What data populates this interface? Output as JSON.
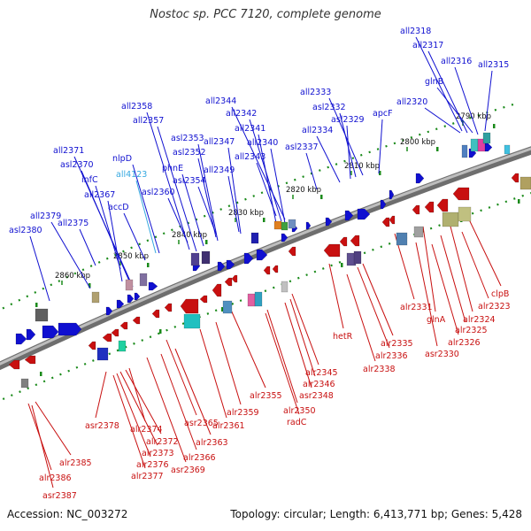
{
  "title": "Nostoc sp. PCC 7120, complete genome",
  "footer": {
    "accession": "Accession: NC_003272",
    "summary": "Topology: circular; Length: 6,413,771 bp; Genes: 5,428"
  },
  "colors": {
    "plus_strand": "#1010d0",
    "minus_strand": "#c81010",
    "highlight": "#35a8e0",
    "backbone": "#808080"
  },
  "ruler": [
    {
      "label": "2790 kbp"
    },
    {
      "label": "2800 kbp"
    },
    {
      "label": "2810 kbp"
    },
    {
      "label": "2820 kbp"
    },
    {
      "label": "2830 kbp"
    },
    {
      "label": "2840 kbp"
    },
    {
      "label": "2850 kbp"
    },
    {
      "label": "2860 kbp"
    }
  ],
  "top_labels": [
    {
      "name": "all2318"
    },
    {
      "name": "all2317"
    },
    {
      "name": "all2316"
    },
    {
      "name": "all2315"
    },
    {
      "name": "glnB"
    },
    {
      "name": "all2320"
    },
    {
      "name": "all2333"
    },
    {
      "name": "asl2332"
    },
    {
      "name": "asl2329"
    },
    {
      "name": "apcF"
    },
    {
      "name": "all2334"
    },
    {
      "name": "all2344"
    },
    {
      "name": "all2342"
    },
    {
      "name": "all2341"
    },
    {
      "name": "all2340"
    },
    {
      "name": "asl2337"
    },
    {
      "name": "all2343"
    },
    {
      "name": "all2358"
    },
    {
      "name": "all2357"
    },
    {
      "name": "asl2353"
    },
    {
      "name": "all2347"
    },
    {
      "name": "asl2352"
    },
    {
      "name": "phnE"
    },
    {
      "name": "all2349"
    },
    {
      "name": "asl2354"
    },
    {
      "name": "all2371"
    },
    {
      "name": "asl2370"
    },
    {
      "name": "nlpD"
    },
    {
      "name": "infC"
    },
    {
      "name": "all4123"
    },
    {
      "name": "all2367"
    },
    {
      "name": "accD"
    },
    {
      "name": "asl2360"
    },
    {
      "name": "all2379"
    },
    {
      "name": "asl2380"
    },
    {
      "name": "all2375"
    }
  ],
  "bottom_labels": [
    {
      "name": "clpB"
    },
    {
      "name": "alr2323"
    },
    {
      "name": "alr2324"
    },
    {
      "name": "alr2331"
    },
    {
      "name": "glnA"
    },
    {
      "name": "alr2325"
    },
    {
      "name": "alr2326"
    },
    {
      "name": "asr2330"
    },
    {
      "name": "hetR"
    },
    {
      "name": "alr2335"
    },
    {
      "name": "alr2336"
    },
    {
      "name": "alr2338"
    },
    {
      "name": "alr2345"
    },
    {
      "name": "alr2346"
    },
    {
      "name": "asr2348"
    },
    {
      "name": "alr2355"
    },
    {
      "name": "alr2350"
    },
    {
      "name": "radC"
    },
    {
      "name": "alr2359"
    },
    {
      "name": "alr2361"
    },
    {
      "name": "asr2365"
    },
    {
      "name": "alr2363"
    },
    {
      "name": "asr2378"
    },
    {
      "name": "alr2374"
    },
    {
      "name": "alr2372"
    },
    {
      "name": "alr2373"
    },
    {
      "name": "alr2366"
    },
    {
      "name": "alr2376"
    },
    {
      "name": "asr2369"
    },
    {
      "name": "alr2377"
    },
    {
      "name": "alr2385"
    },
    {
      "name": "alr2386"
    },
    {
      "name": "asr2387"
    }
  ]
}
